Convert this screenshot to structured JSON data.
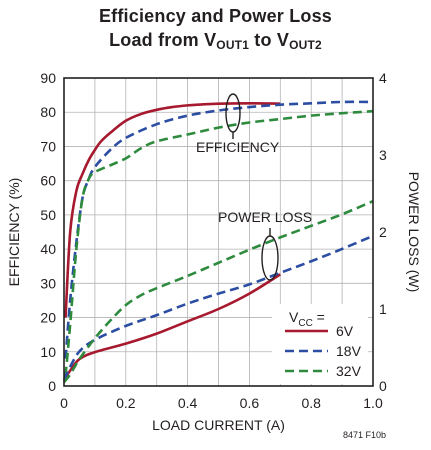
{
  "chart_data": {
    "type": "line",
    "title_line1": "Efficiency and Power Loss",
    "title_line2_prefix": "Load from V",
    "title_line2_sub1": "OUT1",
    "title_line2_mid": " to V",
    "title_line2_sub2": "OUT2",
    "xlabel": "LOAD CURRENT (A)",
    "ylabel_left": "EFFICIENCY (%)",
    "ylabel_right": "POWER LOSS (W)",
    "xlim": [
      0,
      1.0
    ],
    "ylim_left": [
      0,
      90
    ],
    "ylim_right": [
      0,
      4
    ],
    "x_ticks": [
      "0",
      "0.2",
      "0.4",
      "0.6",
      "0.8",
      "1.0"
    ],
    "x_tick_values": [
      0,
      0.2,
      0.4,
      0.6,
      0.8,
      1.0
    ],
    "y_left_ticks": [
      "0",
      "10",
      "20",
      "30",
      "40",
      "50",
      "60",
      "70",
      "80",
      "90"
    ],
    "y_left_tick_values": [
      0,
      10,
      20,
      30,
      40,
      50,
      60,
      70,
      80,
      90
    ],
    "y_right_ticks": [
      "0",
      "1",
      "2",
      "3",
      "4"
    ],
    "y_right_tick_values": [
      0,
      1,
      2,
      3,
      4
    ],
    "grid": true,
    "legend_title_prefix": "V",
    "legend_title_sub": "CC",
    "legend_title_suffix": " =",
    "legend_position": "bottom-right",
    "annotations": {
      "efficiency": "EFFICIENCY",
      "power_loss": "POWER LOSS"
    },
    "figure_id": "8471 F10b",
    "series": [
      {
        "name": "6V",
        "color": "#a6192e",
        "dash": "solid",
        "group": "efficiency",
        "points": [
          [
            0.005,
            20
          ],
          [
            0.02,
            45
          ],
          [
            0.04,
            57
          ],
          [
            0.06,
            62
          ],
          [
            0.08,
            66
          ],
          [
            0.1,
            69
          ],
          [
            0.12,
            71.5
          ],
          [
            0.15,
            74
          ],
          [
            0.2,
            77.5
          ],
          [
            0.25,
            79.5
          ],
          [
            0.3,
            80.7
          ],
          [
            0.35,
            81.5
          ],
          [
            0.4,
            82
          ],
          [
            0.45,
            82.3
          ],
          [
            0.5,
            82.5
          ],
          [
            0.6,
            82.6
          ],
          [
            0.7,
            82.5
          ]
        ]
      },
      {
        "name": "18V",
        "color": "#2b4ea2",
        "dash": "dashed",
        "group": "efficiency",
        "points": [
          [
            0.005,
            8
          ],
          [
            0.02,
            25
          ],
          [
            0.04,
            42
          ],
          [
            0.06,
            55
          ],
          [
            0.08,
            60.5
          ],
          [
            0.1,
            64
          ],
          [
            0.15,
            69
          ],
          [
            0.2,
            72.5
          ],
          [
            0.3,
            76.5
          ],
          [
            0.4,
            79
          ],
          [
            0.5,
            80.5
          ],
          [
            0.6,
            81.5
          ],
          [
            0.7,
            82.2
          ],
          [
            0.8,
            82.6
          ],
          [
            0.9,
            83
          ],
          [
            1.0,
            83
          ]
        ]
      },
      {
        "name": "32V",
        "color": "#2e8b3e",
        "dash": "dashed",
        "group": "efficiency",
        "points": [
          [
            0.005,
            3
          ],
          [
            0.02,
            18
          ],
          [
            0.04,
            40
          ],
          [
            0.06,
            55
          ],
          [
            0.08,
            60.5
          ],
          [
            0.1,
            62.5
          ],
          [
            0.15,
            64.5
          ],
          [
            0.2,
            66.5
          ],
          [
            0.25,
            69.5
          ],
          [
            0.3,
            71.5
          ],
          [
            0.4,
            73.5
          ],
          [
            0.5,
            75.5
          ],
          [
            0.6,
            77
          ],
          [
            0.7,
            78
          ],
          [
            0.8,
            79
          ],
          [
            0.9,
            79.7
          ],
          [
            1.0,
            80.3
          ]
        ]
      },
      {
        "name": "6V",
        "color": "#a6192e",
        "dash": "solid",
        "group": "power_loss",
        "points": [
          [
            0,
            0.08
          ],
          [
            0.02,
            0.2
          ],
          [
            0.05,
            0.35
          ],
          [
            0.1,
            0.44
          ],
          [
            0.2,
            0.55
          ],
          [
            0.3,
            0.68
          ],
          [
            0.4,
            0.84
          ],
          [
            0.5,
            1.0
          ],
          [
            0.6,
            1.2
          ],
          [
            0.7,
            1.45
          ]
        ]
      },
      {
        "name": "18V",
        "color": "#2b4ea2",
        "dash": "dashed",
        "group": "power_loss",
        "points": [
          [
            0,
            0.08
          ],
          [
            0.02,
            0.25
          ],
          [
            0.05,
            0.45
          ],
          [
            0.1,
            0.6
          ],
          [
            0.2,
            0.78
          ],
          [
            0.3,
            0.92
          ],
          [
            0.4,
            1.07
          ],
          [
            0.5,
            1.2
          ],
          [
            0.6,
            1.32
          ],
          [
            0.7,
            1.47
          ],
          [
            0.8,
            1.62
          ],
          [
            0.9,
            1.78
          ],
          [
            1.0,
            1.95
          ]
        ]
      },
      {
        "name": "32V",
        "color": "#2e8b3e",
        "dash": "dashed",
        "group": "power_loss",
        "points": [
          [
            0,
            0.05
          ],
          [
            0.02,
            0.15
          ],
          [
            0.05,
            0.35
          ],
          [
            0.1,
            0.62
          ],
          [
            0.15,
            0.85
          ],
          [
            0.2,
            1.05
          ],
          [
            0.25,
            1.18
          ],
          [
            0.3,
            1.27
          ],
          [
            0.4,
            1.43
          ],
          [
            0.5,
            1.6
          ],
          [
            0.6,
            1.77
          ],
          [
            0.7,
            1.93
          ],
          [
            0.8,
            2.08
          ],
          [
            0.9,
            2.23
          ],
          [
            1.0,
            2.4
          ]
        ]
      }
    ]
  }
}
